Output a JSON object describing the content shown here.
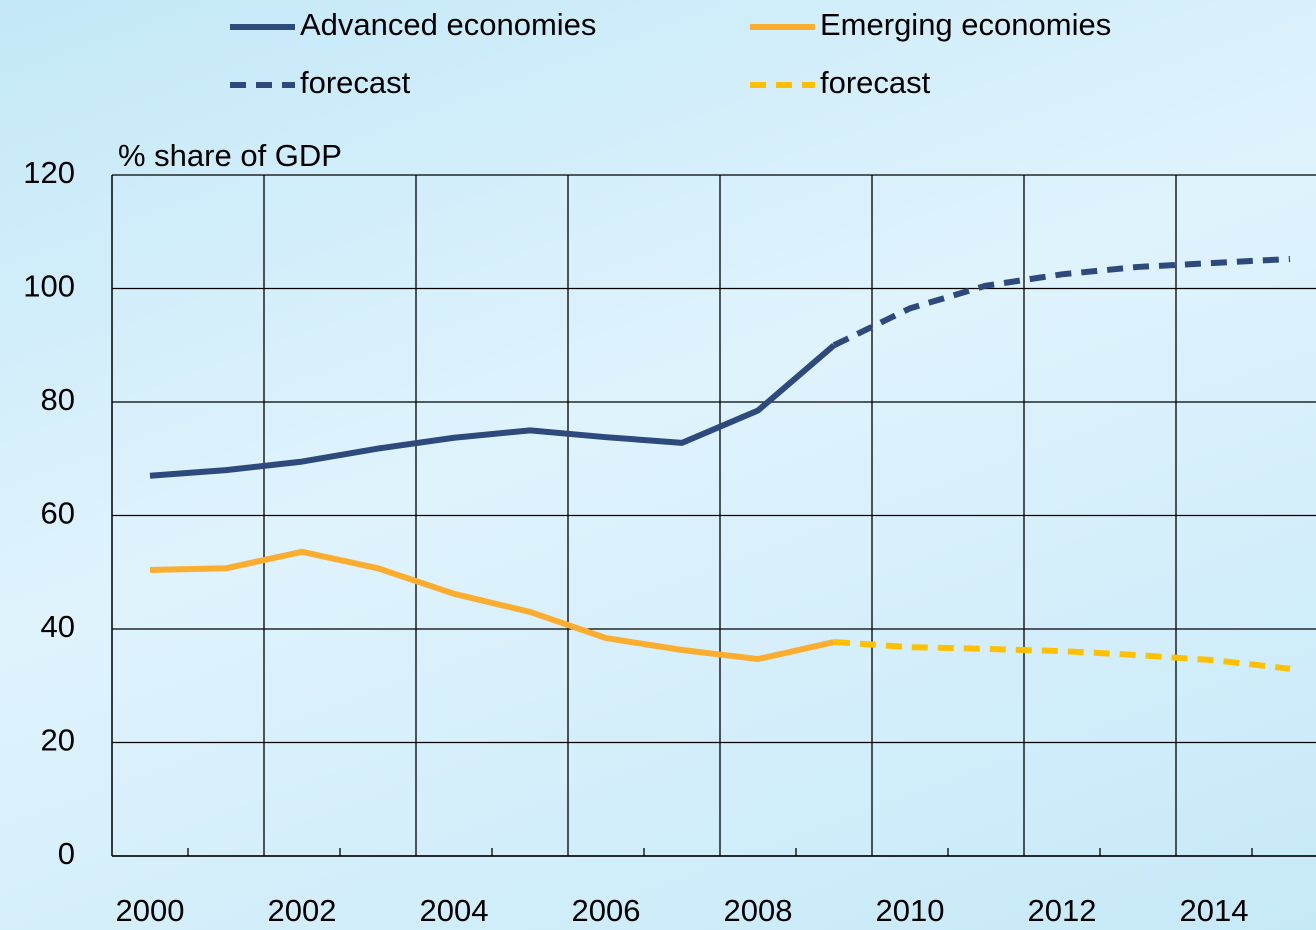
{
  "chart_data": {
    "type": "line",
    "y_label": "% share of GDP",
    "categories": [
      "2000",
      null,
      "2002",
      null,
      "2004",
      null,
      "2006",
      null,
      "2008",
      null,
      "2010",
      null,
      "2012",
      null,
      "2014",
      null
    ],
    "series": [
      {
        "name": "Advanced economies",
        "color": "#2e4a7d",
        "dashed": false,
        "values": [
          67,
          68,
          69.5,
          71.8,
          73.7,
          75,
          73.8,
          72.8,
          78.5,
          90,
          null,
          null,
          null,
          null,
          null,
          null
        ]
      },
      {
        "name": "Emerging economies",
        "color": "#fbad30",
        "dashed": false,
        "values": [
          50.4,
          50.7,
          53.6,
          50.7,
          46.2,
          43,
          38.4,
          36.3,
          34.7,
          37.7,
          null,
          null,
          null,
          null,
          null,
          null
        ]
      },
      {
        "name": "forecast",
        "color": "#2e4a7d",
        "dashed": true,
        "values": [
          null,
          null,
          null,
          null,
          null,
          null,
          null,
          null,
          null,
          90,
          96.5,
          100.5,
          102.5,
          103.8,
          104.5,
          105.2
        ]
      },
      {
        "name": "forecast",
        "color": "#ffc000",
        "dashed": true,
        "values": [
          null,
          null,
          null,
          null,
          null,
          null,
          null,
          null,
          null,
          37.7,
          36.8,
          36.5,
          36.1,
          35.4,
          34.5,
          33
        ]
      }
    ],
    "ylim": [
      0,
      120
    ],
    "yticks": [
      0,
      20,
      40,
      60,
      80,
      100,
      120
    ],
    "grid": true
  }
}
